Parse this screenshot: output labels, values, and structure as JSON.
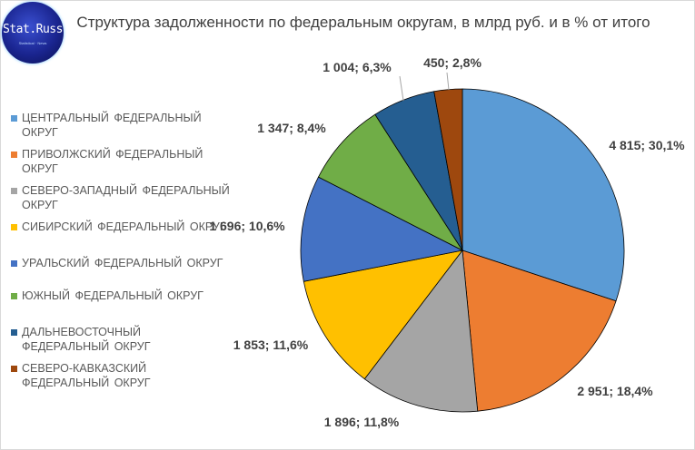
{
  "logo": {
    "name": "Stat.Russ",
    "tagline": "Statistical · News"
  },
  "chart_data": {
    "type": "pie",
    "title": "Структура задолженности по федеральным округам, в млрд руб. и в % от итого",
    "legend_position": "left",
    "series": [
      {
        "name": "ЦЕНТРАЛЬНЫЙ ФЕДЕРАЛЬНЫЙ ОКРУГ",
        "value": 4815,
        "label": "4 815; 30,1%",
        "color": "#5b9bd5"
      },
      {
        "name": "ПРИВОЛЖСКИЙ ФЕДЕРАЛЬНЫЙ ОКРУГ",
        "value": 2951,
        "label": "2 951; 18,4%",
        "color": "#ed7d31"
      },
      {
        "name": "СЕВЕРО-ЗАПАДНЫЙ ФЕДЕРАЛЬНЫЙ ОКРУГ",
        "value": 1896,
        "label": "1 896; 11,8%",
        "color": "#a5a5a5"
      },
      {
        "name": "СИБИРСКИЙ ФЕДЕРАЛЬНЫЙ ОКРУГ",
        "value": 1853,
        "label": "1 853; 11,6%",
        "color": "#ffc000"
      },
      {
        "name": "УРАЛЬСКИЙ ФЕДЕРАЛЬНЫЙ ОКРУГ",
        "value": 1696,
        "label": "1 696; 10,6%",
        "color": "#4472c4"
      },
      {
        "name": "ЮЖНЫЙ ФЕДЕРАЛЬНЫЙ ОКРУГ",
        "value": 1347,
        "label": "1 347; 8,4%",
        "color": "#70ad47"
      },
      {
        "name": "ДАЛЬНЕВОСТОЧНЫЙ ФЕДЕРАЛЬНЫЙ ОКРУГ",
        "value": 1004,
        "label": "1 004; 6,3%",
        "color": "#255e91"
      },
      {
        "name": "СЕВЕРО-КАВКАЗСКИЙ ФЕДЕРАЛЬНЫЙ ОКРУГ",
        "value": 450,
        "label": "450; 2,8%",
        "color": "#9e480e"
      }
    ]
  }
}
